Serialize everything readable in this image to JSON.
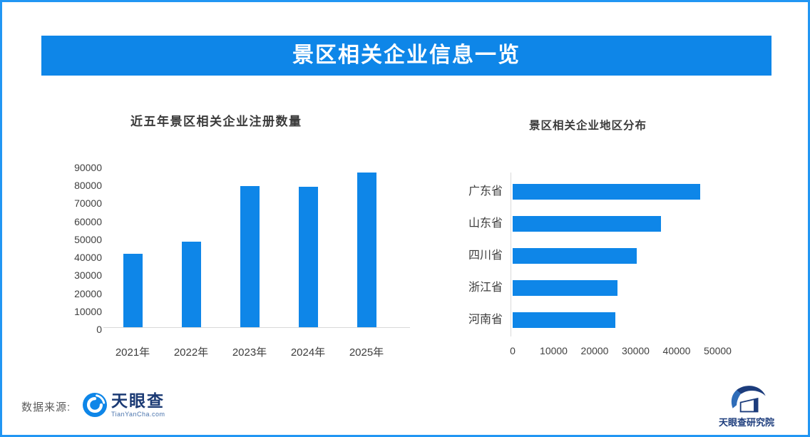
{
  "frame": {
    "border_color": "#2196F3",
    "background": "#FFFFFF"
  },
  "header": {
    "title": "景区相关企业信息一览",
    "bg_color": "#0E86E8",
    "text_color": "#FFFFFF"
  },
  "chart_data": [
    {
      "type": "bar",
      "title": "近五年景区相关企业注册数量",
      "categories": [
        "2021年",
        "2022年",
        "2023年",
        "2024年",
        "2025年"
      ],
      "values": [
        41000,
        47500,
        78500,
        78000,
        86000
      ],
      "xlabel": "",
      "ylabel": "",
      "ylim": [
        0,
        90000
      ],
      "yticks": [
        "90000",
        "80000",
        "70000",
        "60000",
        "50000",
        "40000",
        "30000",
        "20000",
        "10000",
        "0"
      ],
      "bar_color": "#0E86E8",
      "grid": false,
      "legend": false
    },
    {
      "type": "bar_horizontal",
      "title": "景区相关企业地区分布",
      "categories": [
        "广东省",
        "山东省",
        "四川省",
        "浙江省",
        "河南省"
      ],
      "values": [
        45800,
        36200,
        30300,
        25600,
        25000
      ],
      "xlabel": "",
      "ylabel": "",
      "xlim": [
        0,
        50000
      ],
      "xticks": [
        "0",
        "10000",
        "20000",
        "30000",
        "40000",
        "50000"
      ],
      "bar_color": "#0E86E8",
      "grid": false,
      "legend": false
    }
  ],
  "footer": {
    "source_label": "数据来源:",
    "tianyancha": {
      "name": "天眼查",
      "sub": "TianYanCha.com"
    },
    "institute": {
      "name": "天眼查研究院"
    }
  }
}
